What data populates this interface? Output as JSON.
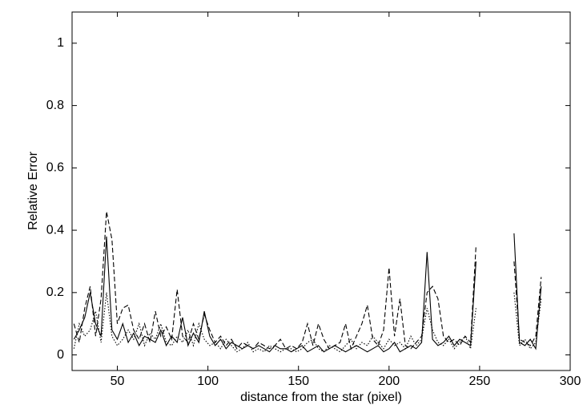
{
  "chart_data": {
    "type": "line",
    "xlabel": "distance from the star (pixel)",
    "ylabel": "Relative Error",
    "x": [
      26,
      29,
      32,
      35,
      38,
      41,
      44,
      47,
      50,
      53,
      56,
      59,
      62,
      65,
      68,
      71,
      74,
      77,
      80,
      83,
      86,
      89,
      92,
      95,
      98,
      101,
      104,
      107,
      110,
      113,
      116,
      119,
      122,
      125,
      128,
      131,
      134,
      137,
      140,
      143,
      146,
      149,
      152,
      155,
      158,
      161,
      164,
      167,
      170,
      173,
      176,
      179,
      182,
      185,
      188,
      191,
      194,
      197,
      200,
      203,
      206,
      209,
      212,
      215,
      218,
      221,
      224,
      227,
      230,
      233,
      236,
      239,
      242,
      245,
      248,
      251,
      254,
      257,
      260,
      263,
      266,
      269,
      272,
      275,
      278,
      281,
      284
    ],
    "series": [
      {
        "color": "#000000",
        "dash": "solid",
        "values": [
          0.05,
          0.08,
          0.12,
          0.2,
          0.1,
          0.06,
          0.38,
          0.08,
          0.05,
          0.1,
          0.04,
          0.07,
          0.03,
          0.06,
          0.05,
          0.04,
          0.08,
          0.03,
          0.06,
          0.04,
          0.12,
          0.03,
          0.07,
          0.04,
          0.14,
          0.06,
          0.03,
          0.05,
          0.02,
          0.04,
          0.03,
          0.02,
          0.03,
          0.02,
          0.03,
          0.02,
          0.01,
          0.03,
          0.02,
          0.02,
          0.01,
          0.02,
          0.03,
          0.01,
          0.02,
          0.03,
          0.01,
          0.02,
          0.03,
          0.02,
          0.01,
          0.02,
          0.03,
          0.02,
          0.01,
          0.02,
          0.03,
          0.01,
          0.02,
          0.04,
          0.01,
          0.02,
          0.03,
          0.02,
          0.04,
          0.33,
          0.05,
          0.03,
          0.04,
          0.06,
          0.03,
          0.05,
          0.04,
          0.03,
          0.3,
          null,
          null,
          null,
          null,
          null,
          null,
          0.39,
          0.04,
          0.03,
          0.05,
          0.02,
          0.22
        ]
      },
      {
        "color": "#000000",
        "dash": "dashed",
        "values": [
          0.1,
          0.04,
          0.15,
          0.22,
          0.06,
          0.18,
          0.46,
          0.37,
          0.1,
          0.15,
          0.16,
          0.08,
          0.05,
          0.1,
          0.04,
          0.14,
          0.06,
          0.09,
          0.05,
          0.21,
          0.06,
          0.04,
          0.1,
          0.05,
          0.13,
          0.08,
          0.04,
          0.06,
          0.03,
          0.05,
          0.02,
          0.04,
          0.03,
          0.02,
          0.04,
          0.03,
          0.02,
          0.03,
          0.05,
          0.02,
          0.03,
          0.02,
          0.04,
          0.1,
          0.03,
          0.1,
          0.05,
          0.02,
          0.03,
          0.04,
          0.1,
          0.02,
          0.06,
          0.1,
          0.16,
          0.05,
          0.03,
          0.08,
          0.28,
          0.06,
          0.18,
          0.03,
          0.02,
          0.04,
          0.06,
          0.2,
          0.22,
          0.18,
          0.06,
          0.04,
          0.05,
          0.03,
          0.06,
          0.04,
          0.35,
          null,
          null,
          null,
          null,
          null,
          null,
          0.3,
          0.05,
          0.04,
          0.03,
          0.06,
          0.25
        ]
      },
      {
        "color": "#000000",
        "dash": "dotted",
        "values": [
          0.02,
          0.1,
          0.06,
          0.08,
          0.14,
          0.04,
          0.2,
          0.06,
          0.03,
          0.05,
          0.08,
          0.05,
          0.1,
          0.03,
          0.07,
          0.05,
          0.1,
          0.04,
          0.03,
          0.06,
          0.04,
          0.08,
          0.03,
          0.1,
          0.05,
          0.03,
          0.04,
          0.02,
          0.05,
          0.03,
          0.01,
          0.02,
          0.04,
          0.01,
          0.02,
          0.01,
          0.03,
          0.02,
          0.01,
          0.02,
          0.02,
          0.01,
          0.02,
          0.04,
          0.05,
          0.02,
          0.01,
          0.03,
          0.02,
          0.01,
          0.03,
          0.05,
          0.02,
          0.04,
          0.03,
          0.06,
          0.04,
          0.02,
          0.05,
          0.03,
          0.04,
          0.02,
          0.06,
          0.03,
          0.05,
          0.15,
          0.08,
          0.04,
          0.03,
          0.05,
          0.02,
          0.04,
          0.06,
          0.02,
          0.15,
          null,
          null,
          null,
          null,
          null,
          null,
          0.2,
          0.03,
          0.05,
          0.02,
          0.04,
          0.18
        ]
      }
    ],
    "xlim": [
      25,
      300
    ],
    "xticks": [
      50,
      100,
      150,
      200,
      250,
      300
    ],
    "ylim": [
      -0.05,
      1.1
    ],
    "yticks": [
      0,
      0.2,
      0.4,
      0.6,
      0.8,
      1
    ]
  }
}
